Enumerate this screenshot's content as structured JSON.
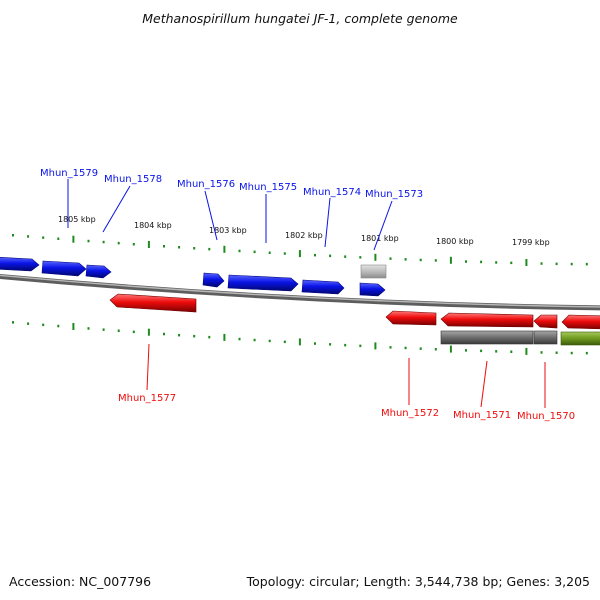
{
  "title": "Methanospirillum hungatei JF-1, complete genome",
  "footer": {
    "accession": "Accession: NC_007796",
    "topology": "Topology: circular; Length: 3,544,738 bp; Genes: 3,205"
  },
  "colors": {
    "forward_strand": "#0a14e6",
    "reverse_strand": "#ee0c0c",
    "grey_feature": "#7a7a7a",
    "light_grey_feature": "#bbbbbb",
    "olive_feature": "#6e9a1f",
    "backbone": "#8a8a8a",
    "tick": "#1f8a1f"
  },
  "position_labels": [
    "1805 kbp",
    "1804 kbp",
    "1803 kbp",
    "1802 kbp",
    "1801 kbp",
    "1800 kbp",
    "1799 kbp"
  ],
  "gene_labels": {
    "top": [
      "Mhun_1579",
      "Mhun_1578",
      "Mhun_1576",
      "Mhun_1575",
      "Mhun_1574",
      "Mhun_1573"
    ],
    "bottom": [
      "Mhun_1577",
      "Mhun_1572",
      "Mhun_1571",
      "Mhun_1570"
    ]
  }
}
